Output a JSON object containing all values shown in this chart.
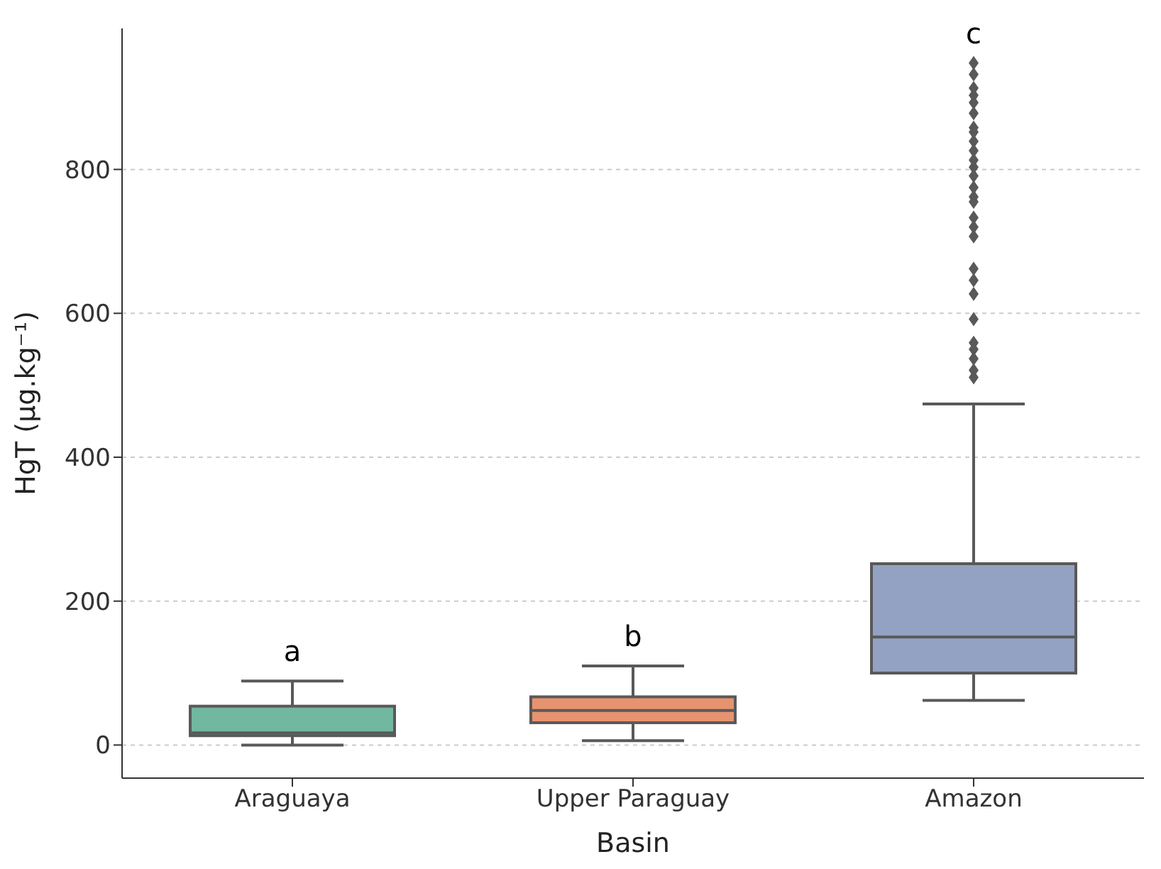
{
  "chart_data": {
    "type": "box",
    "xlabel": "Basin",
    "ylabel": "HgT (µg.kg⁻¹)",
    "categories": [
      "Araguaya",
      "Upper Paraguay",
      "Amazon"
    ],
    "colors": [
      "#72b7a0",
      "#e8936f",
      "#93a2c2"
    ],
    "boxes": [
      {
        "low": 0,
        "q1": 13,
        "median": 17,
        "q3": 54,
        "high": 89
      },
      {
        "low": 6,
        "q1": 31,
        "median": 48,
        "q3": 67,
        "high": 110
      },
      {
        "low": 62,
        "q1": 100,
        "median": 150,
        "q3": 252,
        "high": 474,
        "outliers": [
          948,
          932,
          913,
          903,
          893,
          878,
          858,
          852,
          839,
          826,
          813,
          803,
          791,
          775,
          762,
          755,
          733,
          720,
          707,
          662,
          646,
          627,
          592,
          559,
          550,
          537,
          521,
          511
        ]
      }
    ],
    "ylim": [
      -46,
      996
    ],
    "yticks": [
      0,
      200,
      400,
      600,
      800
    ],
    "grid": "y",
    "marker": "diamond",
    "annotations": [
      "a",
      "b",
      "c"
    ]
  }
}
